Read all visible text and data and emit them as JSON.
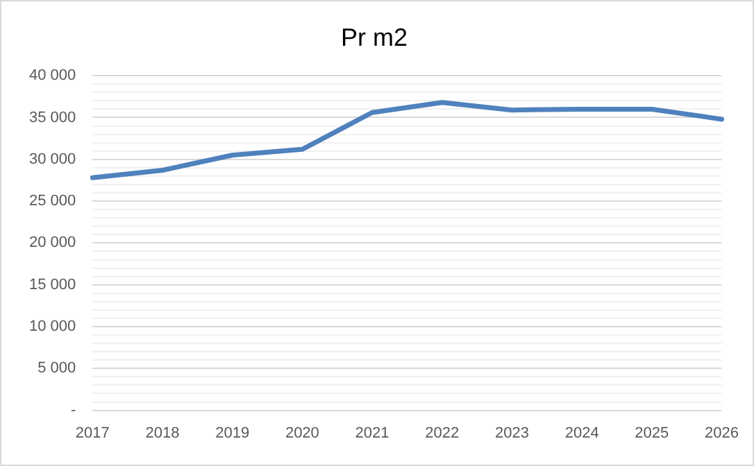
{
  "chart_data": {
    "type": "line",
    "title": "Pr m2",
    "categories": [
      "2017",
      "2018",
      "2019",
      "2020",
      "2021",
      "2022",
      "2023",
      "2024",
      "2025",
      "2026"
    ],
    "series": [
      {
        "color": "#4f81bd",
        "values": [
          27800,
          28700,
          30500,
          31200,
          35600,
          36800,
          35900,
          36000,
          36000,
          34800
        ]
      }
    ],
    "ylim": [
      0,
      40000
    ],
    "yticks": [
      {
        "value": 0,
        "label": "-"
      },
      {
        "value": 1000,
        "label": null
      },
      {
        "value": 2000,
        "label": null
      },
      {
        "value": 3000,
        "label": null
      },
      {
        "value": 4000,
        "label": null
      },
      {
        "value": 5000,
        "label": "5 000"
      },
      {
        "value": 6000,
        "label": null
      },
      {
        "value": 7000,
        "label": null
      },
      {
        "value": 8000,
        "label": null
      },
      {
        "value": 9000,
        "label": null
      },
      {
        "value": 10000,
        "label": "10 000"
      },
      {
        "value": 11000,
        "label": null
      },
      {
        "value": 12000,
        "label": null
      },
      {
        "value": 13000,
        "label": null
      },
      {
        "value": 14000,
        "label": null
      },
      {
        "value": 15000,
        "label": "15 000"
      },
      {
        "value": 16000,
        "label": null
      },
      {
        "value": 17000,
        "label": null
      },
      {
        "value": 18000,
        "label": null
      },
      {
        "value": 19000,
        "label": null
      },
      {
        "value": 20000,
        "label": "20 000"
      },
      {
        "value": 21000,
        "label": null
      },
      {
        "value": 22000,
        "label": null
      },
      {
        "value": 23000,
        "label": null
      },
      {
        "value": 24000,
        "label": null
      },
      {
        "value": 25000,
        "label": "25 000"
      },
      {
        "value": 26000,
        "label": null
      },
      {
        "value": 27000,
        "label": null
      },
      {
        "value": 28000,
        "label": null
      },
      {
        "value": 29000,
        "label": null
      },
      {
        "value": 30000,
        "label": "30 000"
      },
      {
        "value": 31000,
        "label": null
      },
      {
        "value": 32000,
        "label": null
      },
      {
        "value": 33000,
        "label": null
      },
      {
        "value": 34000,
        "label": null
      },
      {
        "value": 35000,
        "label": "35 000"
      },
      {
        "value": 36000,
        "label": null
      },
      {
        "value": 37000,
        "label": null
      },
      {
        "value": 38000,
        "label": null
      },
      {
        "value": 39000,
        "label": null
      },
      {
        "value": 40000,
        "label": "40 000"
      }
    ],
    "grid": "y",
    "marker": "none",
    "line_style": "solid",
    "legend": false
  }
}
